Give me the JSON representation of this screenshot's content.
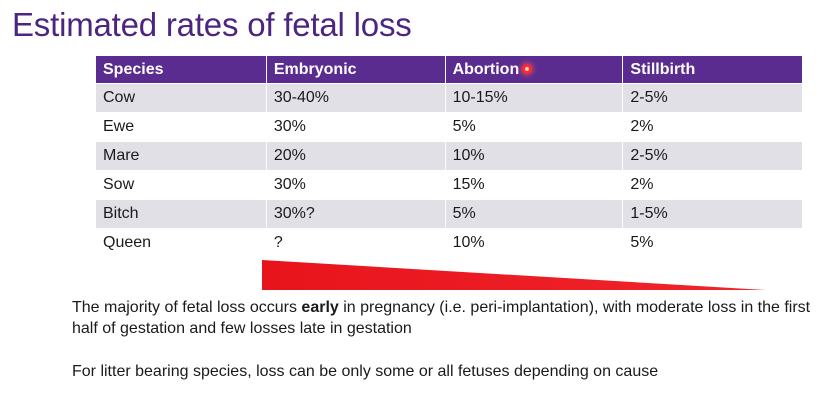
{
  "title": "Estimated rates of fetal loss",
  "table": {
    "headers": {
      "species": "Species",
      "embryonic": "Embryonic",
      "abortion": "Abortion",
      "stillbirth": "Stillbirth"
    },
    "rows": [
      {
        "species": "Cow",
        "embryonic": "30-40%",
        "abortion": "10-15%",
        "stillbirth": "2-5%"
      },
      {
        "species": "Ewe",
        "embryonic": "30%",
        "abortion": "5%",
        "stillbirth": "2%"
      },
      {
        "species": "Mare",
        "embryonic": "20%",
        "abortion": "10%",
        "stillbirth": "2-5%"
      },
      {
        "species": "Sow",
        "embryonic": "30%",
        "abortion": "15%",
        "stillbirth": "2%"
      },
      {
        "species": "Bitch",
        "embryonic": "30%?",
        "abortion": "5%",
        "stillbirth": "1-5%"
      },
      {
        "species": "Queen",
        "embryonic": "?",
        "abortion": "10%",
        "stillbirth": "5%"
      }
    ]
  },
  "colors": {
    "title": "#4b2580",
    "header_bg": "#5b2c8f",
    "row_shade": "#e1e0e6",
    "wedge": "#e8141c",
    "pointer": "#ff2a2a"
  },
  "paragraphs": {
    "p1_before": "The majority of fetal loss occurs ",
    "p1_bold": "early",
    "p1_after": " in pregnancy (i.e. peri-implantation), with moderate loss in the first half of gestation and few losses late in gestation",
    "p2": "For litter bearing species, loss can be only some or all fetuses depending on cause"
  }
}
